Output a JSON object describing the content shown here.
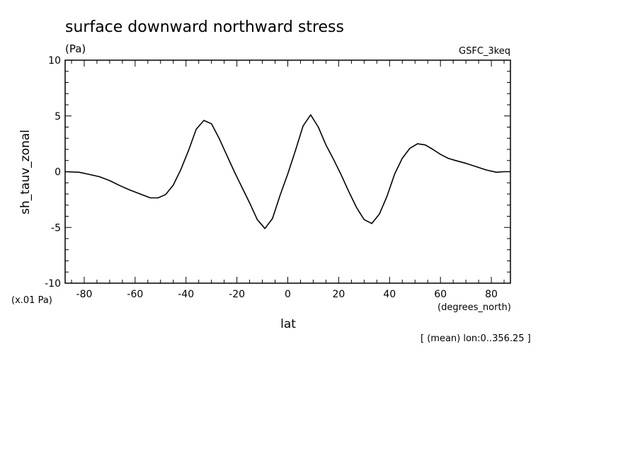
{
  "chart_data": {
    "type": "line",
    "title": "surface downward northward stress",
    "subtitle": "(Pa)",
    "source_label": "GSFC_3keq",
    "xlabel": "lat",
    "x_unit": "(degrees_north)",
    "ylabel": "sh_tauv_zonal",
    "y_unit": "(x.01 Pa)",
    "footnote": "[ (mean) lon:0..356.25 ]",
    "xlim": [
      -87.5,
      87.5
    ],
    "ylim": [
      -10,
      10
    ],
    "x_ticks": [
      -80,
      -60,
      -40,
      -20,
      0,
      20,
      40,
      60,
      80
    ],
    "x_tick_labels": [
      "-80",
      "-60",
      "-40",
      "-20",
      "0",
      "20",
      "40",
      "60",
      "80"
    ],
    "y_ticks": [
      -10,
      -5,
      0,
      5,
      10
    ],
    "y_tick_labels": [
      "-10",
      "-5",
      "0",
      "5",
      "10"
    ],
    "grid": false,
    "series": [
      {
        "x": [
          -87.5,
          -82,
          -78,
          -74,
          -70,
          -66,
          -62,
          -58,
          -54,
          -51,
          -48,
          -45,
          -42,
          -39,
          -36,
          -33,
          -30,
          -27,
          -24,
          -21,
          -18,
          -15,
          -12,
          -9,
          -6,
          -3,
          0,
          3,
          6,
          9,
          12,
          15,
          18,
          21,
          24,
          27,
          30,
          33,
          36,
          39,
          42,
          45,
          48,
          51,
          54,
          57,
          60,
          63,
          66,
          70,
          74,
          78,
          82,
          85,
          87.5
        ],
        "y": [
          0,
          -0.05,
          -0.25,
          -0.45,
          -0.8,
          -1.25,
          -1.65,
          -2.0,
          -2.35,
          -2.35,
          -2.05,
          -1.2,
          0.2,
          1.9,
          3.8,
          4.6,
          4.3,
          3.0,
          1.5,
          0.0,
          -1.4,
          -2.8,
          -4.3,
          -5.1,
          -4.2,
          -2.1,
          -0.2,
          1.9,
          4.1,
          5.1,
          4.0,
          2.4,
          1.1,
          -0.3,
          -1.8,
          -3.2,
          -4.3,
          -4.65,
          -3.8,
          -2.2,
          -0.2,
          1.2,
          2.1,
          2.5,
          2.4,
          2.0,
          1.55,
          1.2,
          1.0,
          0.75,
          0.45,
          0.15,
          -0.05,
          0,
          0
        ]
      }
    ]
  }
}
